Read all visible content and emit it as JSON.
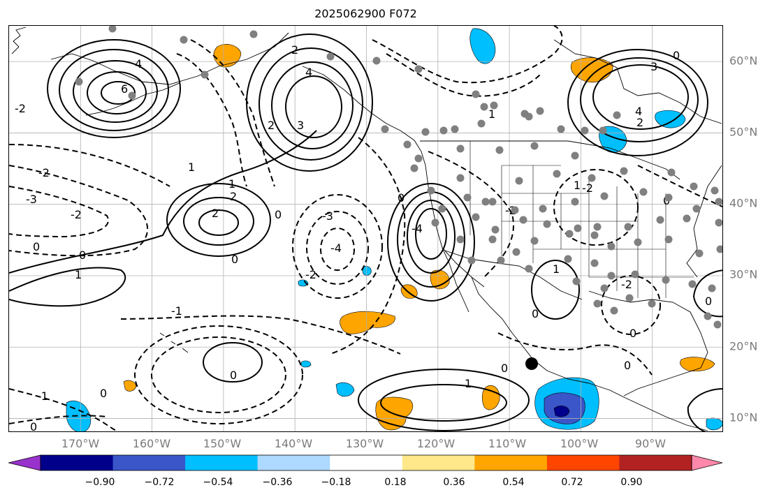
{
  "title": "2025062900 F072",
  "map": {
    "projection": "lat-lon",
    "lon_range": [
      -180,
      -80
    ],
    "lat_range": [
      8,
      65
    ],
    "gridlines": true,
    "lon_labels": [
      "170°W",
      "160°W",
      "150°W",
      "140°W",
      "130°W",
      "120°W",
      "110°W",
      "100°W",
      "90°W"
    ],
    "lat_labels": [
      "10°N",
      "20°N",
      "30°N",
      "40°N",
      "50°N",
      "60°N"
    ],
    "contour_labels": [
      "6",
      "4",
      "3",
      "2",
      "1",
      "0",
      "-1",
      "-2",
      "-3",
      "-4"
    ],
    "fill_colors": {
      "neg_strong": "#3a56c9",
      "neg_mid": "#00bfff",
      "neg_weak": "#add8ff",
      "pos_weak": "#ffe88a",
      "pos_mid": "#ffa500",
      "pos_strong": "#ff4500"
    },
    "station_marker_color": "#808080",
    "storm_marker_color": "#000000"
  },
  "colorbar": {
    "colors": [
      "#9932cc",
      "#00008b",
      "#3a56c9",
      "#00bfff",
      "#add8ff",
      "#ffffff",
      "#ffe88a",
      "#ffa500",
      "#ff4500",
      "#b22222",
      "#ff88aa"
    ],
    "ticks": [
      "−0.90",
      "−0.72",
      "−0.54",
      "−0.36",
      "−0.18",
      "0.18",
      "0.36",
      "0.54",
      "0.72",
      "0.90"
    ],
    "extend": "both"
  }
}
